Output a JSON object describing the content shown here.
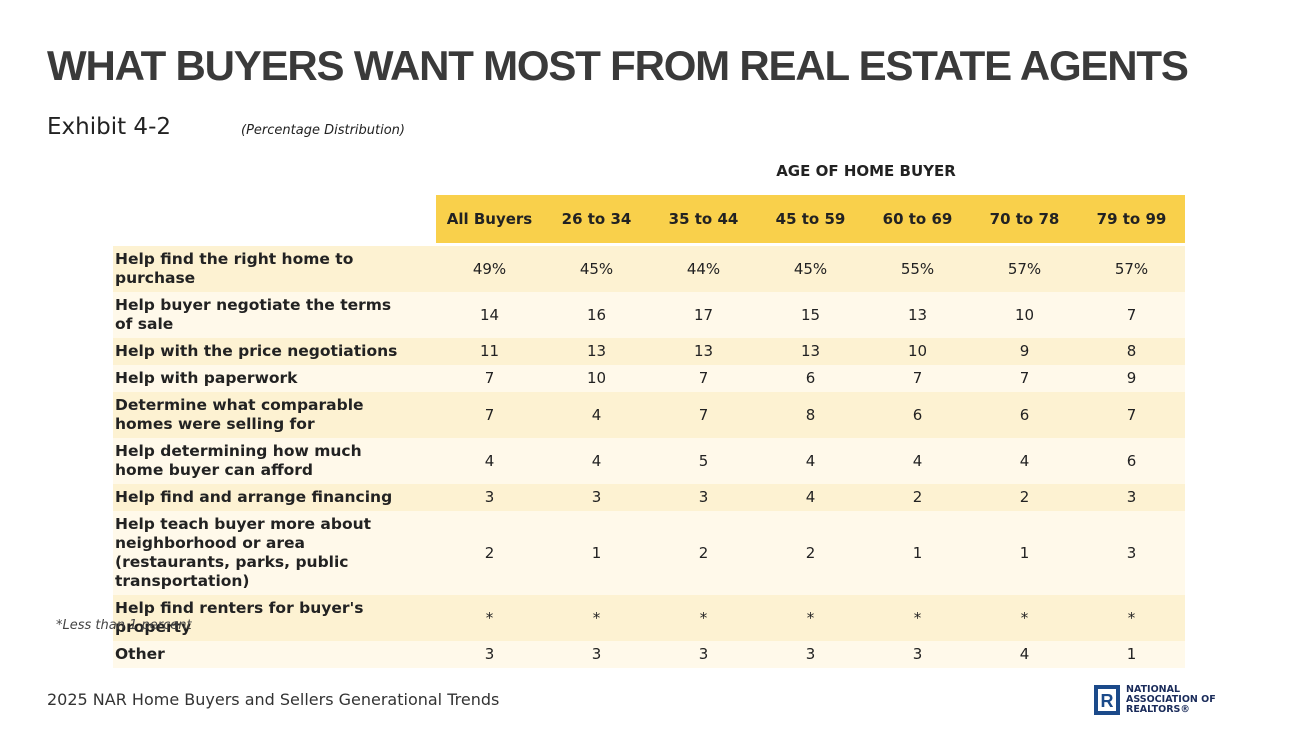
{
  "header": {
    "title": "WHAT BUYERS WANT MOST FROM REAL ESTATE AGENTS",
    "exhibit": "Exhibit 4-2",
    "subtitle": "(Percentage Distribution)"
  },
  "table": {
    "group_header": "AGE OF HOME BUYER",
    "columns": [
      "All Buyers",
      "26 to 34",
      "35 to 44",
      "45 to 59",
      "60 to 69",
      "70 to 78",
      "79 to 99"
    ],
    "rows": [
      {
        "label": "Help find the right home to purchase",
        "cells": [
          "49%",
          "45%",
          "44%",
          "45%",
          "55%",
          "57%",
          "57%"
        ]
      },
      {
        "label": "Help buyer negotiate the terms of sale",
        "cells": [
          "14",
          "16",
          "17",
          "15",
          "13",
          "10",
          "7"
        ]
      },
      {
        "label": "Help with the price negotiations",
        "cells": [
          "11",
          "13",
          "13",
          "13",
          "10",
          "9",
          "8"
        ]
      },
      {
        "label": "Help with paperwork",
        "cells": [
          "7",
          "10",
          "7",
          "6",
          "7",
          "7",
          "9"
        ]
      },
      {
        "label": "Determine what comparable homes were selling for",
        "cells": [
          "7",
          "4",
          "7",
          "8",
          "6",
          "6",
          "7"
        ]
      },
      {
        "label": "Help determining how much home buyer can afford",
        "cells": [
          "4",
          "4",
          "5",
          "4",
          "4",
          "4",
          "6"
        ]
      },
      {
        "label": "Help find and arrange financing",
        "cells": [
          "3",
          "3",
          "3",
          "4",
          "2",
          "2",
          "3"
        ]
      },
      {
        "label": "Help teach buyer more about neighborhood or area (restaurants, parks, public transportation)",
        "cells": [
          "2",
          "1",
          "2",
          "2",
          "1",
          "1",
          "3"
        ]
      },
      {
        "label": "Help find renters for buyer's property",
        "cells": [
          "*",
          "*",
          "*",
          "*",
          "*",
          "*",
          "*"
        ]
      },
      {
        "label": "Other",
        "cells": [
          "3",
          "3",
          "3",
          "3",
          "3",
          "4",
          "1"
        ]
      }
    ]
  },
  "footnote": "*Less than 1 percent",
  "footer": {
    "source": "2025 NAR Home Buyers and Sellers Generational Trends",
    "logo_text": "NATIONAL ASSOCIATION OF REALTORS®"
  }
}
